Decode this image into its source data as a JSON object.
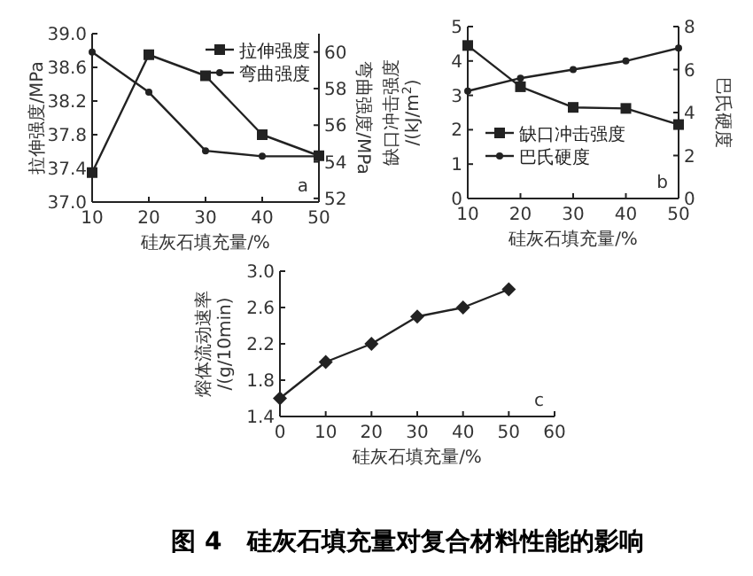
{
  "chart_data": [
    {
      "type": "line",
      "xlabel": "硅灰石填充量/%",
      "ylabel": "拉伸强度/MPa",
      "y2label": "弯曲强度/MPa",
      "x": [
        10,
        20,
        30,
        40,
        50
      ],
      "xlim": [
        10,
        50
      ],
      "xticks": [
        10,
        20,
        30,
        40,
        50
      ],
      "ylim": [
        37.0,
        39.0
      ],
      "yticks": [
        {
          "value": 37.0,
          "label": "37.0"
        },
        37.4,
        37.8,
        38.2,
        38.6,
        {
          "value": 39.0,
          "label": "39.0"
        }
      ],
      "y2lim": [
        51.8,
        61
      ],
      "y2ticks": [
        52,
        54,
        56,
        58,
        60
      ],
      "legend": "top right",
      "grid": false,
      "annotations": [
        "a"
      ],
      "series": [
        {
          "name": "拉伸强度",
          "color": "#222222",
          "marker": "square",
          "values": [
            37.35,
            38.75,
            38.5,
            37.8,
            37.55
          ]
        },
        {
          "name": "弯曲强度",
          "color": "#222222",
          "marker": "circle",
          "axis": "y2",
          "values": [
            60.0,
            57.8,
            54.6,
            54.3,
            54.3
          ]
        }
      ]
    },
    {
      "type": "line",
      "xlabel": "硅灰石填充量/%",
      "ylabel": "缺口冲击强度/(kJ/m$^{2}$)",
      "y2label": "巴氏硬度",
      "x": [
        10,
        20,
        30,
        40,
        50
      ],
      "xlim": [
        10,
        50
      ],
      "xticks": [
        10,
        20,
        30,
        40,
        50
      ],
      "ylim": [
        0,
        5
      ],
      "yticks": [
        0,
        1,
        2,
        3,
        4,
        5
      ],
      "y2lim": [
        0,
        8
      ],
      "y2ticks": [
        0,
        2,
        4,
        6,
        8
      ],
      "legend": "bottom left",
      "grid": false,
      "annotations": [
        "b"
      ],
      "series": [
        {
          "name": "缺口冲击强度",
          "color": "#222222",
          "marker": "square",
          "values": [
            4.45,
            3.25,
            2.65,
            2.62,
            2.15
          ]
        },
        {
          "name": "巴氏硬度",
          "color": "#222222",
          "marker": "circle",
          "axis": "y2",
          "values": [
            5.0,
            5.6,
            6.0,
            6.4,
            7.0
          ]
        }
      ]
    },
    {
      "type": "line",
      "xlabel": "硅灰石填充量/%",
      "ylabel": "熔体流动速率/(g/10min)",
      "x": [
        0,
        10,
        20,
        30,
        40,
        50
      ],
      "xlim": [
        0,
        60
      ],
      "xticks": [
        0,
        10,
        20,
        30,
        40,
        50,
        60
      ],
      "ylim": [
        1.4,
        3.0
      ],
      "yticks": [
        1.4,
        1.8,
        2.2,
        2.6,
        {
          "value": 3.0,
          "label": "3.0"
        }
      ],
      "legend": false,
      "grid": false,
      "annotations": [
        "c",
        "图 4　硅灰石填充量对复合材料性能的影响"
      ],
      "series": [
        {
          "color": "#222222",
          "marker": "diamond",
          "values": [
            1.6,
            2.0,
            2.2,
            2.5,
            2.6,
            2.8
          ]
        }
      ]
    }
  ]
}
